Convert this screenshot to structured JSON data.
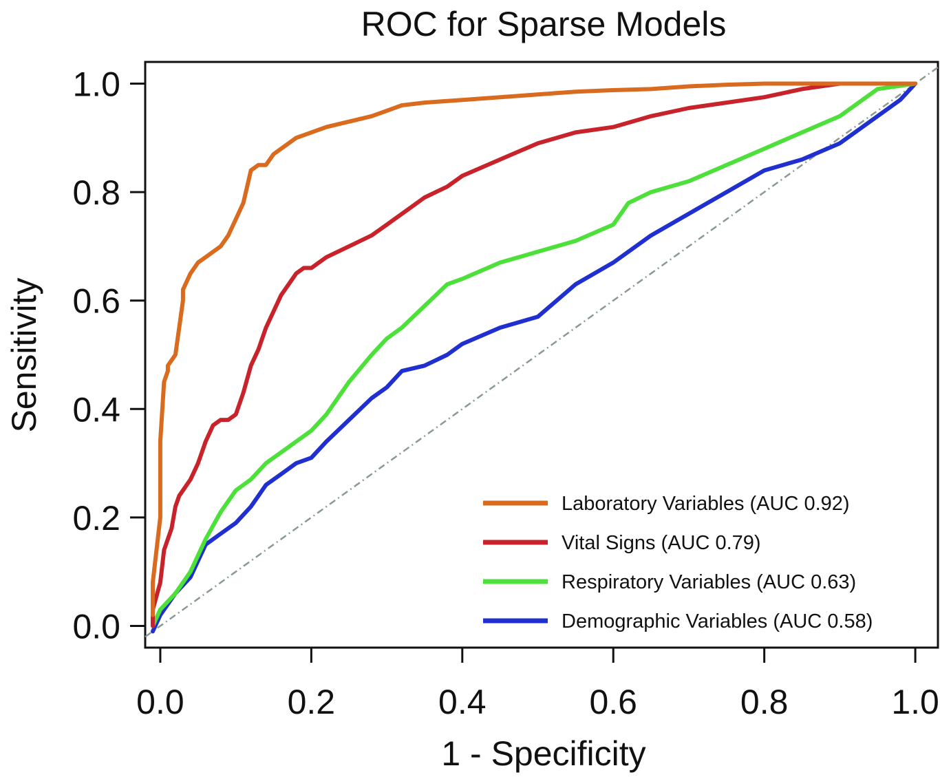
{
  "chart_data": {
    "type": "line",
    "title": "ROC for Sparse Models",
    "xlabel": "1 - Specificity",
    "ylabel": "Sensitivity",
    "xlim": [
      -0.02,
      1.03
    ],
    "ylim": [
      -0.04,
      1.04
    ],
    "xticks": [
      0.0,
      0.2,
      0.4,
      0.6,
      0.8,
      1.0
    ],
    "yticks": [
      0.0,
      0.2,
      0.4,
      0.6,
      0.8,
      1.0
    ],
    "xtick_labels": [
      "0.0",
      "0.2",
      "0.4",
      "0.6",
      "0.8",
      "1.0"
    ],
    "ytick_labels": [
      "0.0",
      "0.2",
      "0.4",
      "0.6",
      "0.8",
      "1.0"
    ],
    "grid": false,
    "legend_position": "bottom-right",
    "reference_line": {
      "name": "chance",
      "x": [
        -0.02,
        1.03
      ],
      "y": [
        -0.02,
        1.03
      ],
      "color": "#8a9a92",
      "style": "dash-dot"
    },
    "series": [
      {
        "name": "Laboratory Variables (AUC 0.92)",
        "color": "#d96a1e",
        "x": [
          -0.01,
          -0.01,
          0.0,
          0.0,
          0.005,
          0.01,
          0.01,
          0.02,
          0.025,
          0.03,
          0.03,
          0.04,
          0.05,
          0.06,
          0.07,
          0.08,
          0.09,
          0.1,
          0.11,
          0.12,
          0.13,
          0.14,
          0.15,
          0.16,
          0.17,
          0.18,
          0.2,
          0.22,
          0.25,
          0.28,
          0.3,
          0.32,
          0.35,
          0.4,
          0.45,
          0.5,
          0.55,
          0.6,
          0.65,
          0.7,
          0.75,
          0.8,
          0.85,
          0.9,
          0.95,
          1.0
        ],
        "y": [
          0.02,
          0.08,
          0.2,
          0.34,
          0.45,
          0.47,
          0.48,
          0.5,
          0.55,
          0.6,
          0.62,
          0.65,
          0.67,
          0.68,
          0.69,
          0.7,
          0.72,
          0.75,
          0.78,
          0.84,
          0.85,
          0.85,
          0.87,
          0.88,
          0.89,
          0.9,
          0.91,
          0.92,
          0.93,
          0.94,
          0.95,
          0.96,
          0.965,
          0.97,
          0.975,
          0.98,
          0.985,
          0.988,
          0.99,
          0.995,
          0.998,
          1.0,
          1.0,
          1.0,
          1.0,
          1.0
        ]
      },
      {
        "name": "Vital Signs (AUC 0.79)",
        "color": "#c8232a",
        "x": [
          -0.01,
          -0.01,
          0.0,
          0.005,
          0.01,
          0.015,
          0.02,
          0.025,
          0.03,
          0.04,
          0.05,
          0.06,
          0.07,
          0.08,
          0.09,
          0.1,
          0.11,
          0.12,
          0.13,
          0.14,
          0.15,
          0.16,
          0.17,
          0.18,
          0.19,
          0.2,
          0.22,
          0.25,
          0.28,
          0.3,
          0.33,
          0.35,
          0.38,
          0.4,
          0.45,
          0.5,
          0.55,
          0.6,
          0.65,
          0.7,
          0.75,
          0.8,
          0.85,
          0.9,
          0.95,
          1.0
        ],
        "y": [
          0.0,
          0.03,
          0.08,
          0.14,
          0.16,
          0.18,
          0.22,
          0.24,
          0.25,
          0.27,
          0.3,
          0.34,
          0.37,
          0.38,
          0.38,
          0.39,
          0.43,
          0.48,
          0.51,
          0.55,
          0.58,
          0.61,
          0.63,
          0.65,
          0.66,
          0.66,
          0.68,
          0.7,
          0.72,
          0.74,
          0.77,
          0.79,
          0.81,
          0.83,
          0.86,
          0.89,
          0.91,
          0.92,
          0.94,
          0.955,
          0.965,
          0.975,
          0.99,
          1.0,
          1.0,
          1.0
        ]
      },
      {
        "name": "Respiratory Variables (AUC 0.63)",
        "color": "#4ee03a",
        "x": [
          -0.01,
          0.0,
          0.02,
          0.04,
          0.05,
          0.06,
          0.08,
          0.1,
          0.12,
          0.14,
          0.16,
          0.18,
          0.2,
          0.22,
          0.25,
          0.28,
          0.3,
          0.32,
          0.35,
          0.38,
          0.4,
          0.45,
          0.5,
          0.55,
          0.6,
          0.62,
          0.65,
          0.7,
          0.75,
          0.8,
          0.85,
          0.9,
          0.95,
          1.0
        ],
        "y": [
          0.0,
          0.03,
          0.06,
          0.1,
          0.13,
          0.16,
          0.21,
          0.25,
          0.27,
          0.3,
          0.32,
          0.34,
          0.36,
          0.39,
          0.45,
          0.5,
          0.53,
          0.55,
          0.59,
          0.63,
          0.64,
          0.67,
          0.69,
          0.71,
          0.74,
          0.78,
          0.8,
          0.82,
          0.85,
          0.88,
          0.91,
          0.94,
          0.99,
          1.0
        ]
      },
      {
        "name": "Demographic Variables (AUC 0.58)",
        "color": "#1f2fd0",
        "x": [
          -0.01,
          0.0,
          0.02,
          0.04,
          0.05,
          0.06,
          0.08,
          0.1,
          0.12,
          0.14,
          0.16,
          0.18,
          0.2,
          0.22,
          0.25,
          0.28,
          0.3,
          0.32,
          0.35,
          0.38,
          0.4,
          0.45,
          0.5,
          0.55,
          0.6,
          0.65,
          0.7,
          0.75,
          0.8,
          0.85,
          0.9,
          0.95,
          0.98,
          1.0
        ],
        "y": [
          -0.01,
          0.02,
          0.06,
          0.09,
          0.12,
          0.15,
          0.17,
          0.19,
          0.22,
          0.26,
          0.28,
          0.3,
          0.31,
          0.34,
          0.38,
          0.42,
          0.44,
          0.47,
          0.48,
          0.5,
          0.52,
          0.55,
          0.57,
          0.63,
          0.67,
          0.72,
          0.76,
          0.8,
          0.84,
          0.86,
          0.89,
          0.94,
          0.97,
          1.0
        ]
      }
    ]
  }
}
